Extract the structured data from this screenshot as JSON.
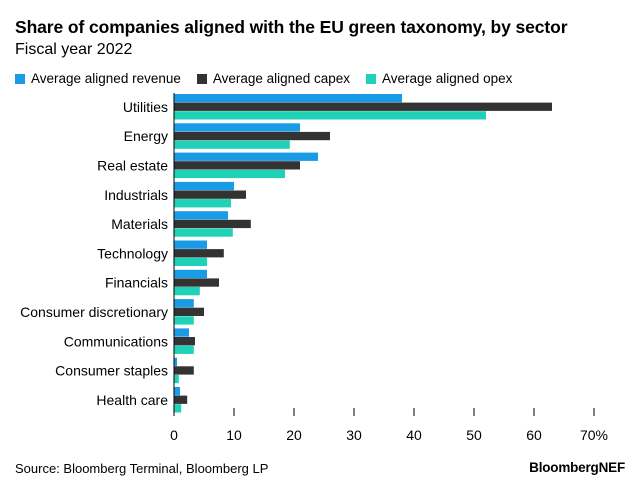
{
  "header": {
    "title": "Share of companies aligned with the EU green taxonomy, by sector",
    "subtitle": "Fiscal year 2022"
  },
  "footer": {
    "source": "Source: Bloomberg Terminal, Bloomberg LP",
    "brand": "BloombergNEF"
  },
  "colors": {
    "revenue": "#1a9be6",
    "capex": "#333333",
    "opex": "#1fd1b6",
    "gridline": "#cccccc",
    "axis": "#000000"
  },
  "chart_data": {
    "type": "bar",
    "orientation": "horizontal",
    "title": "Share of companies aligned with the EU green taxonomy, by sector",
    "subtitle": "Fiscal year 2022",
    "categories": [
      "Utilities",
      "Energy",
      "Real estate",
      "Industrials",
      "Materials",
      "Technology",
      "Financials",
      "Consumer discretionary",
      "Communications",
      "Consumer staples",
      "Health care"
    ],
    "series": [
      {
        "name": "Average aligned revenue",
        "color": "#1a9be6",
        "values": [
          38,
          21,
          24,
          10,
          9,
          5.5,
          5.5,
          3.3,
          2.5,
          0.5,
          1
        ]
      },
      {
        "name": "Average aligned capex",
        "color": "#333333",
        "values": [
          63,
          26,
          21,
          12,
          12.8,
          8.3,
          7.5,
          5,
          3.5,
          3.3,
          2.2
        ]
      },
      {
        "name": "Average aligned opex",
        "color": "#1fd1b6",
        "values": [
          52,
          19.3,
          18.5,
          9.5,
          9.8,
          5.5,
          4.3,
          3.3,
          3.3,
          0.8,
          1.2
        ]
      }
    ],
    "xlim": [
      0,
      70
    ],
    "xticks": [
      0,
      10,
      20,
      30,
      40,
      50,
      60,
      70
    ],
    "xtick_labels": [
      "0",
      "10",
      "20",
      "30",
      "40",
      "50",
      "60",
      "70%"
    ],
    "legend": "top",
    "grid": "vertical ticks only"
  }
}
